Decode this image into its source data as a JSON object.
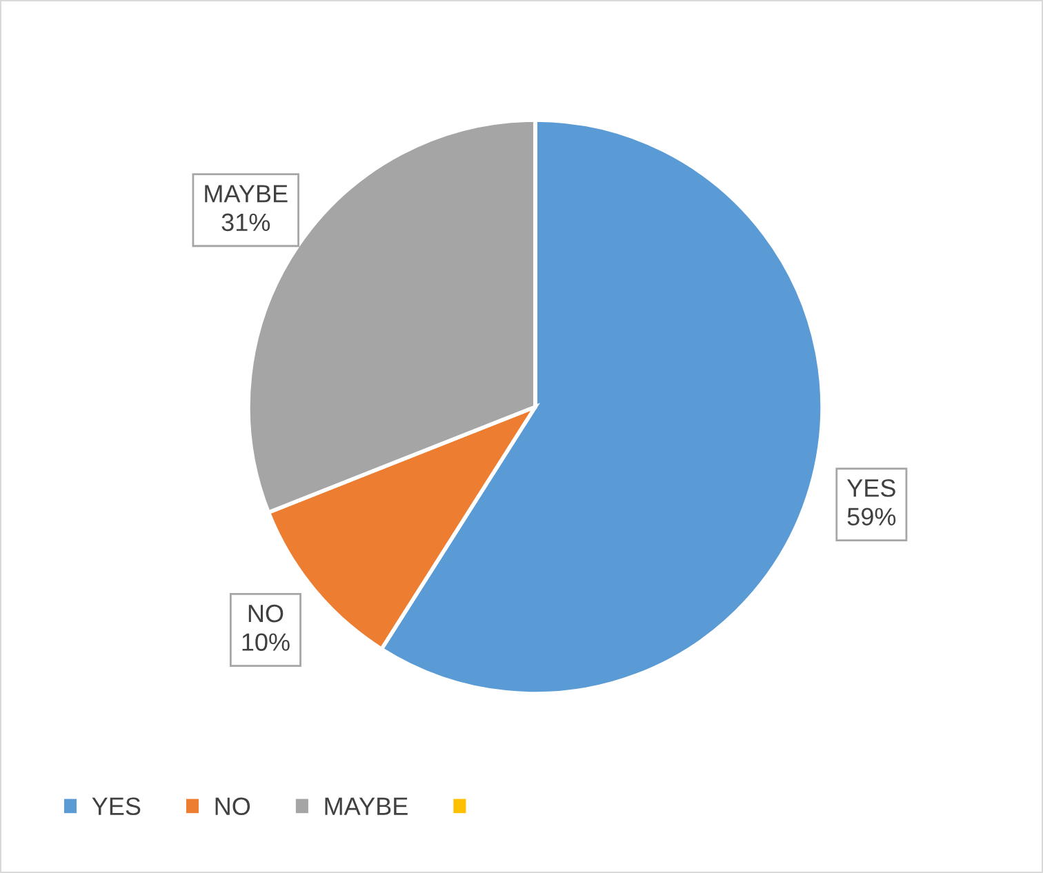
{
  "chart_data": {
    "type": "pie",
    "categories": [
      "YES",
      "NO",
      "MAYBE",
      null
    ],
    "values": [
      59,
      10,
      31,
      0
    ],
    "colors": [
      "#5b9bd5",
      "#ed7d31",
      "#a5a5a5",
      "#ffc000"
    ],
    "value_labels": [
      "59%",
      "10%",
      "31%",
      null
    ],
    "legend": "bottom"
  }
}
